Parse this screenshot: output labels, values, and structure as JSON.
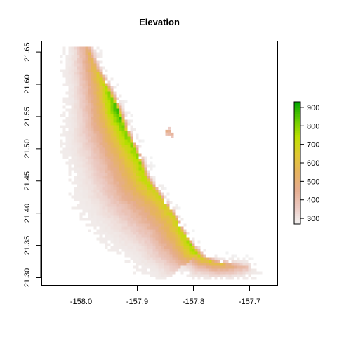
{
  "chart_data": {
    "type": "heatmap",
    "title": "Elevation",
    "xlabel": "",
    "ylabel": "",
    "xlim": [
      -158.07,
      -157.65
    ],
    "ylim": [
      21.288,
      21.667
    ],
    "x_ticks": [
      {
        "value": -158.0,
        "label": "-158.0"
      },
      {
        "value": -157.9,
        "label": "-157.9"
      },
      {
        "value": -157.8,
        "label": "-157.8"
      },
      {
        "value": -157.7,
        "label": "-157.7"
      }
    ],
    "y_ticks": [
      {
        "value": 21.3,
        "label": "21.30"
      },
      {
        "value": 21.35,
        "label": "21.35"
      },
      {
        "value": 21.4,
        "label": "21.40"
      },
      {
        "value": 21.45,
        "label": "21.45"
      },
      {
        "value": 21.5,
        "label": "21.50"
      },
      {
        "value": 21.55,
        "label": "21.55"
      },
      {
        "value": 21.6,
        "label": "21.60"
      },
      {
        "value": 21.65,
        "label": "21.65"
      }
    ],
    "colorbar": {
      "min": 270,
      "max": 930,
      "ticks": [
        {
          "value": 300,
          "label": "300"
        },
        {
          "value": 400,
          "label": "400"
        },
        {
          "value": 500,
          "label": "500"
        },
        {
          "value": 600,
          "label": "600"
        },
        {
          "value": 700,
          "label": "700"
        },
        {
          "value": 800,
          "label": "800"
        },
        {
          "value": 900,
          "label": "900"
        }
      ],
      "colors": [
        "#f2f2f2",
        "#ebc8c0",
        "#e6ad8e",
        "#e6b35e",
        "#e0c832",
        "#bde000",
        "#66cc00",
        "#00a600"
      ]
    },
    "ridge": [
      {
        "lon": -157.99,
        "lat": 21.66,
        "elev": 520
      },
      {
        "lon": -157.975,
        "lat": 21.625,
        "elev": 610
      },
      {
        "lon": -157.955,
        "lat": 21.595,
        "elev": 760
      },
      {
        "lon": -157.935,
        "lat": 21.56,
        "elev": 915
      },
      {
        "lon": -157.92,
        "lat": 21.525,
        "elev": 820
      },
      {
        "lon": -157.9,
        "lat": 21.49,
        "elev": 800
      },
      {
        "lon": -157.885,
        "lat": 21.455,
        "elev": 760
      },
      {
        "lon": -157.86,
        "lat": 21.425,
        "elev": 700
      },
      {
        "lon": -157.835,
        "lat": 21.395,
        "elev": 690
      },
      {
        "lon": -157.82,
        "lat": 21.37,
        "elev": 720
      },
      {
        "lon": -157.8,
        "lat": 21.345,
        "elev": 800
      },
      {
        "lon": -157.785,
        "lat": 21.33,
        "elev": 700
      },
      {
        "lon": -157.76,
        "lat": 21.322,
        "elev": 640
      },
      {
        "lon": -157.73,
        "lat": 21.318,
        "elev": 520
      },
      {
        "lon": -157.705,
        "lat": 21.316,
        "elev": 380
      }
    ],
    "islet": {
      "lon": -157.845,
      "lat": 21.525,
      "elev": 470
    }
  }
}
